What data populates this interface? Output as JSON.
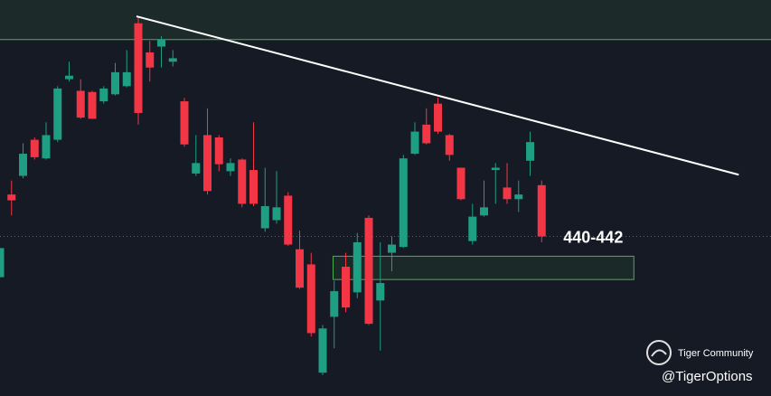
{
  "chart_data": {
    "type": "candlestick",
    "xlim": [
      0,
      66.9
    ],
    "ylim": [
      430,
      464
    ],
    "up_color": "#1e9e82",
    "down_color": "#f23645",
    "open": [
      440.2,
      447.3,
      448.9,
      452.0,
      450.4,
      452.0,
      457.2,
      456.2,
      456.1,
      455.3,
      455.9,
      456.6,
      462.0,
      459.5,
      460.0,
      458.7,
      455.3,
      449.1,
      452.4,
      452.2,
      449.3,
      450.3,
      449.4,
      444.4,
      445.1,
      447.2,
      442.6,
      441.3,
      432.0,
      436.8,
      441.1,
      438.9,
      445.3,
      438.2,
      442.3,
      442.8,
      450.8,
      453.3,
      455.1,
      452.4,
      449.6,
      443.3,
      445.5,
      449.4,
      447.9,
      446.9,
      450.2,
      448.1
    ],
    "high": [
      442.7,
      448.5,
      451.7,
      452.2,
      453.5,
      456.6,
      458.7,
      457.2,
      456.2,
      456.6,
      458.6,
      459.7,
      462.6,
      460.5,
      460.9,
      459.7,
      455.6,
      452.4,
      454.7,
      452.4,
      450.4,
      450.4,
      453.5,
      449.6,
      449.3,
      447.5,
      444.2,
      442.3,
      436.1,
      439.9,
      442.3,
      444.0,
      445.5,
      443.2,
      443.7,
      450.7,
      453.5,
      454.7,
      455.6,
      452.5,
      449.6,
      446.5,
      448.5,
      450.0,
      450.0,
      448.5,
      452.7,
      448.5
    ],
    "low": [
      440.2,
      445.5,
      448.7,
      450.3,
      450.3,
      451.8,
      457.0,
      453.8,
      453.8,
      455.1,
      455.8,
      456.5,
      453.3,
      457.0,
      458.2,
      458.3,
      451.4,
      448.9,
      447.3,
      449.3,
      448.9,
      446.2,
      446.3,
      444.1,
      444.8,
      442.9,
      439.2,
      435.1,
      431.8,
      434.1,
      437.2,
      438.4,
      436.1,
      433.9,
      440.7,
      442.7,
      450.7,
      451.6,
      452.5,
      450.2,
      446.8,
      443.0,
      445.4,
      446.5,
      446.5,
      445.8,
      448.9,
      443.2
    ],
    "close": [
      442.7,
      446.8,
      450.8,
      450.5,
      452.4,
      456.4,
      457.5,
      453.9,
      453.8,
      456.4,
      457.8,
      457.8,
      454.3,
      458.2,
      460.6,
      459.0,
      451.6,
      450.0,
      447.6,
      449.9,
      450.0,
      446.5,
      446.5,
      446.3,
      446.2,
      443.0,
      439.3,
      435.4,
      435.8,
      439.0,
      437.6,
      443.2,
      436.2,
      439.7,
      443.0,
      450.4,
      452.7,
      451.7,
      452.7,
      450.7,
      446.9,
      445.4,
      446.2,
      449.6,
      446.9,
      447.3,
      451.8,
      443.7
    ],
    "zone": {
      "y": [
        460.6,
        464
      ],
      "color": "#4caf50"
    },
    "trendline": {
      "x": [
        11.84,
        64.1
      ],
      "y": [
        462.6,
        449.0
      ],
      "color": "#ffffff"
    },
    "target_box": {
      "label": "440-442",
      "y": [
        440,
        442
      ],
      "x": [
        28.9,
        55
      ],
      "color": "#4caf50"
    },
    "price_line": {
      "y": 443.7,
      "color": "#f23645"
    },
    "watermark": {
      "brand": "Tiger Community",
      "handle": "@TigerOptions"
    }
  }
}
